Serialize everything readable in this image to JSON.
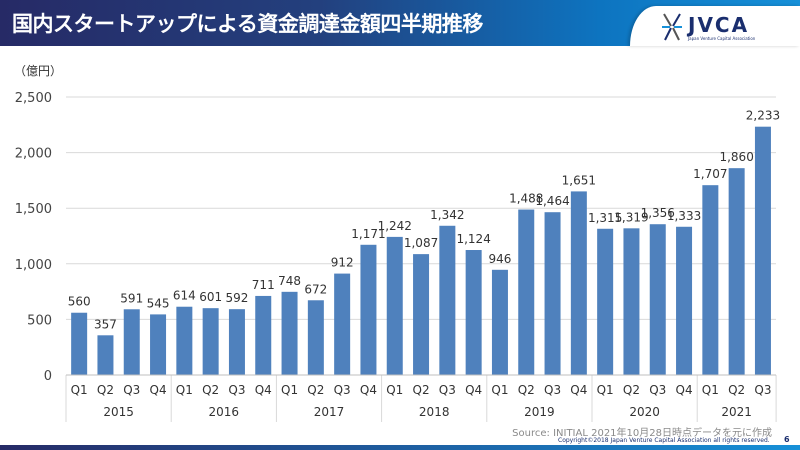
{
  "header": {
    "title": "国内スタートアップによる資金調達金額四半期推移"
  },
  "logo": {
    "text": "JVCA",
    "subtitle": "Japan Venture Capital Association"
  },
  "footer": {
    "source": "Source: INITIAL 2021年10月28日時点データを元に作成",
    "copyright": "Copyright©2018 Japan Venture Capital Association all rights reserved.",
    "page": "6"
  },
  "colors": {
    "bar": "#4f81bd",
    "header_start": "#262a66",
    "header_end": "#1690d8"
  },
  "chart_data": {
    "type": "bar",
    "unit_label": "（億円）",
    "ylim": [
      0,
      2500
    ],
    "yticks": [
      0,
      500,
      1000,
      1500,
      2000,
      2500
    ],
    "ytick_labels": [
      "0",
      "500",
      "1,000",
      "1,500",
      "2,000",
      "2,500"
    ],
    "grid": true,
    "years": [
      {
        "year": "2015",
        "quarters": [
          "Q1",
          "Q2",
          "Q3",
          "Q4"
        ],
        "values": [
          560,
          357,
          591,
          545
        ]
      },
      {
        "year": "2016",
        "quarters": [
          "Q1",
          "Q2",
          "Q3",
          "Q4"
        ],
        "values": [
          614,
          601,
          592,
          711
        ]
      },
      {
        "year": "2017",
        "quarters": [
          "Q1",
          "Q2",
          "Q3",
          "Q4"
        ],
        "values": [
          748,
          672,
          912,
          1171
        ]
      },
      {
        "year": "2018",
        "quarters": [
          "Q1",
          "Q2",
          "Q3",
          "Q4"
        ],
        "values": [
          1242,
          1087,
          1342,
          1124
        ]
      },
      {
        "year": "2019",
        "quarters": [
          "Q1",
          "Q2",
          "Q3",
          "Q4"
        ],
        "values": [
          946,
          1488,
          1464,
          1651
        ]
      },
      {
        "year": "2020",
        "quarters": [
          "Q1",
          "Q2",
          "Q3",
          "Q4"
        ],
        "values": [
          1315,
          1319,
          1356,
          1333
        ]
      },
      {
        "year": "2021",
        "quarters": [
          "Q1",
          "Q2",
          "Q3"
        ],
        "values": [
          1707,
          1860,
          2233
        ]
      }
    ]
  }
}
